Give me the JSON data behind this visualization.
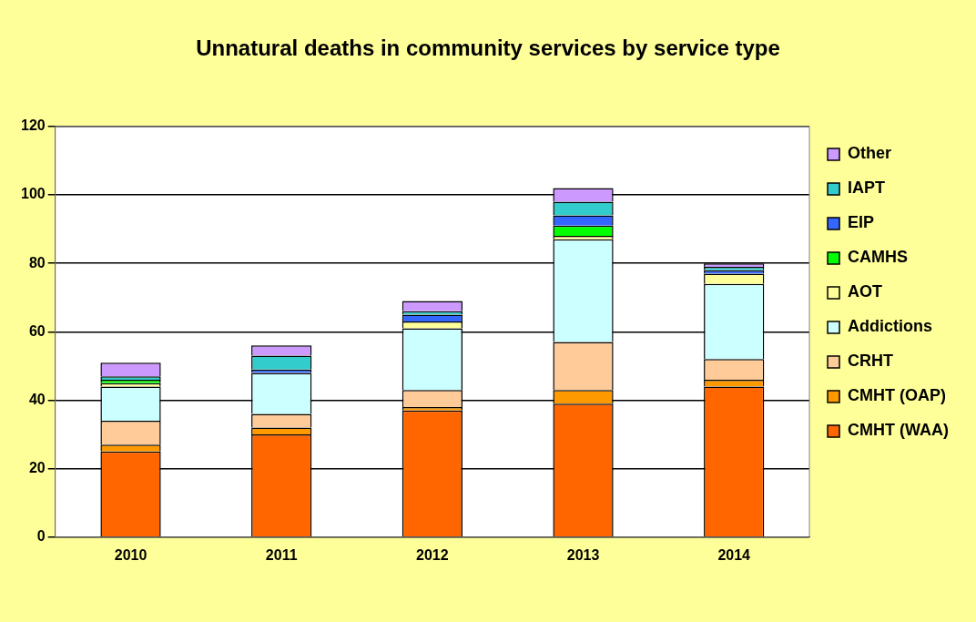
{
  "chart_data": {
    "type": "bar",
    "title": "Unnatural deaths in community services by service type",
    "categories": [
      "2010",
      "2011",
      "2012",
      "2013",
      "2014"
    ],
    "stacked": true,
    "ylim": [
      0,
      120
    ],
    "yticks": [
      0,
      20,
      40,
      60,
      80,
      100,
      120
    ],
    "grid": "y",
    "legend": "right",
    "series": [
      {
        "name": "CMHT (WAA)",
        "color": "#ff6600",
        "values": [
          25,
          30,
          37,
          39,
          44
        ]
      },
      {
        "name": "CMHT (OAP)",
        "color": "#ff9900",
        "values": [
          2,
          2,
          1,
          4,
          2
        ]
      },
      {
        "name": "CRHT",
        "color": "#ffcc99",
        "values": [
          7,
          4,
          5,
          14,
          6
        ]
      },
      {
        "name": "Addictions",
        "color": "#ccffff",
        "values": [
          10,
          12,
          18,
          30,
          22
        ]
      },
      {
        "name": "AOT",
        "color": "#ffff99",
        "values": [
          1,
          0,
          2,
          1,
          3
        ]
      },
      {
        "name": "CAMHS",
        "color": "#00ff00",
        "values": [
          1,
          0,
          0,
          3,
          0
        ]
      },
      {
        "name": "EIP",
        "color": "#3366ff",
        "values": [
          0,
          1,
          2,
          3,
          1
        ]
      },
      {
        "name": "IAPT",
        "color": "#33cccc",
        "values": [
          1,
          4,
          1,
          4,
          1
        ]
      },
      {
        "name": "Other",
        "color": "#cc99ff",
        "values": [
          4,
          3,
          3,
          4,
          1
        ]
      }
    ]
  }
}
